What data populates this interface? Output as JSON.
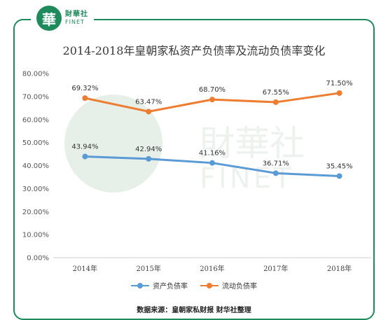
{
  "brand": {
    "logo_char": "華",
    "name_cn": "財華社",
    "name_en": "FINET",
    "accent": "#1f8a5b"
  },
  "source_text": "数据来源：皇朝家私财报 财华社整理",
  "chart_data": {
    "type": "line",
    "title": "2014-2018年皇朝家私资产负债率及流动负债率变化",
    "categories": [
      "2014年",
      "2015年",
      "2016年",
      "2017年",
      "2018年"
    ],
    "ylim": [
      0,
      80
    ],
    "y_ticks": [
      "0.00%",
      "10.00%",
      "20.00%",
      "30.00%",
      "40.00%",
      "50.00%",
      "60.00%",
      "70.00%",
      "80.00%"
    ],
    "grid": false,
    "legend_position": "bottom",
    "series": [
      {
        "name": "资产负债率",
        "color": "#5b9bd5",
        "values": [
          43.94,
          42.94,
          41.16,
          36.71,
          35.45
        ],
        "labels": [
          "43.94%",
          "42.94%",
          "41.16%",
          "36.71%",
          "35.45%"
        ]
      },
      {
        "name": "流动负债率",
        "color": "#ed7d31",
        "values": [
          69.32,
          63.47,
          68.7,
          67.55,
          71.5
        ],
        "labels": [
          "69.32%",
          "63.47%",
          "68.70%",
          "67.55%",
          "71.50%"
        ]
      }
    ]
  }
}
